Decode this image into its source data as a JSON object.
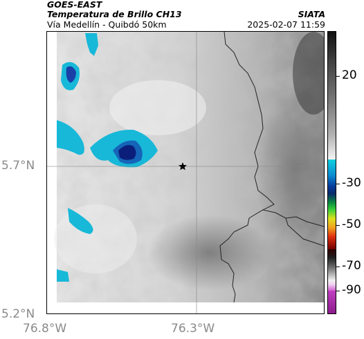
{
  "header": {
    "source": "GOES-EAST",
    "product": "Temperatura de Brillo CH13",
    "region": "Vía Medellín - Quibdó 50km",
    "org": "SIATA",
    "timestamp": "2025-02-07 11:59"
  },
  "axes": {
    "y_ticks": [
      "5.7°N",
      "5.2°N"
    ],
    "x_ticks": [
      "76.8°W",
      "76.3°W"
    ]
  },
  "colorbar": {
    "ticks": [
      "20",
      "-30",
      "-50",
      "-70",
      "-90"
    ]
  },
  "colors": {
    "cold_cloud": "#18b8d8",
    "deep_cloud": "#0b1f7a",
    "warm_background": "#d9d9d9"
  },
  "icons": {
    "reference_marker": "star-icon"
  }
}
